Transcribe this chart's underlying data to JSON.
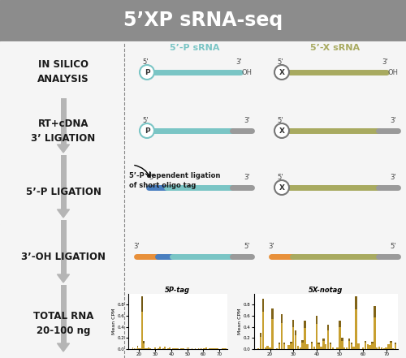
{
  "title": "5’XP sRNA-seq",
  "left_labels": [
    "TOTAL RNA\n20-100 ng",
    "3’-OH LIGATION",
    "5’-P LIGATION",
    "RT+cDNA\n3’ LIGATION",
    "IN SILICO\nANALYSIS"
  ],
  "col_headers": [
    "5’-P sRNA",
    "5’-X sRNA"
  ],
  "col_header_colors": [
    "#7ac5c5",
    "#a8aa60"
  ],
  "header_bg": "#8c8c8c",
  "row_bg_light": "#f7f7f7",
  "row_bg_gray": "#e8e8e8",
  "separator_color": "#999999",
  "arrow_color": "#b0b0b0",
  "rna_blue": "#7ac5c5",
  "rna_olive": "#a8aa60",
  "rna_dark_blue": "#4a7fc0",
  "rna_gray": "#9a9a9a",
  "rna_orange": "#e8903a",
  "tag_text": "5’-P dependent ligation\nof short oligo tag",
  "chart1_title": "5P-tag",
  "chart2_title": "5X-notag"
}
